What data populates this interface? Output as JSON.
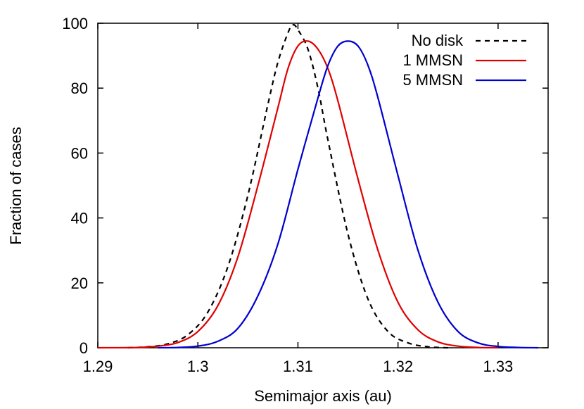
{
  "chart_data": {
    "type": "line",
    "title": "",
    "xlabel": "Semimajor axis (au)",
    "ylabel": "Fraction of cases",
    "xlim": [
      1.29,
      1.335
    ],
    "ylim": [
      0,
      100
    ],
    "x_ticks": [
      1.29,
      1.3,
      1.31,
      1.32,
      1.33
    ],
    "x_tick_labels": [
      "1.29",
      "1.3",
      "1.31",
      "1.32",
      "1.33"
    ],
    "y_ticks": [
      0,
      20,
      40,
      60,
      80,
      100
    ],
    "y_tick_labels": [
      "0",
      "20",
      "40",
      "60",
      "80",
      "100"
    ],
    "grid": false,
    "legend_position": "top-right",
    "series": [
      {
        "name": "No disk",
        "color": "#000000",
        "dash": "dashed",
        "x": [
          1.293,
          1.295,
          1.297,
          1.299,
          1.301,
          1.303,
          1.305,
          1.307,
          1.308,
          1.309,
          1.3095,
          1.31,
          1.311,
          1.312,
          1.313,
          1.315,
          1.317,
          1.319,
          1.321,
          1.323,
          1.325
        ],
        "y": [
          0,
          0.3,
          1.2,
          4,
          11,
          25,
          47,
          75,
          88,
          97,
          99.5,
          98,
          92,
          80,
          64,
          35,
          15,
          5,
          1.5,
          0.3,
          0
        ]
      },
      {
        "name": "1 MMSN",
        "color": "#e00000",
        "dash": "solid",
        "x": [
          1.29,
          1.294,
          1.296,
          1.298,
          1.3,
          1.302,
          1.304,
          1.306,
          1.308,
          1.309,
          1.31,
          1.311,
          1.312,
          1.313,
          1.314,
          1.316,
          1.318,
          1.32,
          1.322,
          1.324,
          1.326,
          1.328,
          1.33
        ],
        "y": [
          0,
          0.1,
          0.5,
          1.6,
          5,
          13,
          28,
          50,
          74,
          86,
          93,
          94.5,
          92,
          86,
          76,
          52,
          30,
          14,
          5.5,
          1.8,
          0.5,
          0.1,
          0
        ]
      },
      {
        "name": "5 MMSN",
        "color": "#0000d0",
        "dash": "solid",
        "x": [
          1.296,
          1.298,
          1.3,
          1.302,
          1.304,
          1.306,
          1.308,
          1.31,
          1.312,
          1.313,
          1.314,
          1.315,
          1.316,
          1.317,
          1.318,
          1.32,
          1.322,
          1.324,
          1.326,
          1.328,
          1.33,
          1.332,
          1.334
        ],
        "y": [
          0,
          0.1,
          0.5,
          2,
          6,
          16,
          32,
          55,
          77,
          87,
          93,
          94.5,
          93,
          87,
          77,
          53,
          30,
          14,
          5,
          1.5,
          0.4,
          0.1,
          0
        ]
      }
    ]
  }
}
